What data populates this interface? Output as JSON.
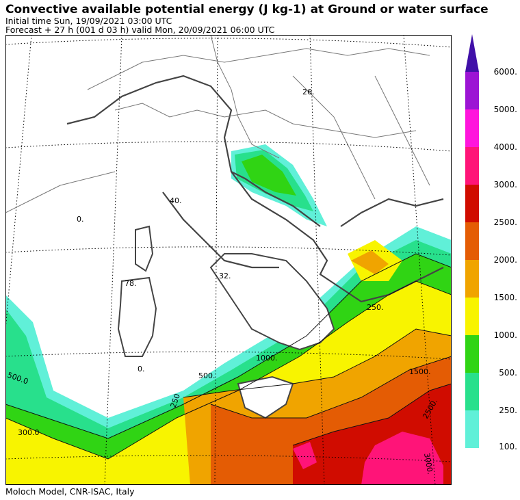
{
  "header": {
    "title": "Convective available potential energy (J kg-1) at Ground or water surface",
    "initial_time": "Initial time  Sun, 19/09/2021  03:00 UTC",
    "forecast": "Forecast  +  27 h  (001 d 03 h)  valid Mon, 20/09/2021 06:00 UTC"
  },
  "footer": {
    "credit": "Moloch Model, CNR-ISAC, Italy"
  },
  "legend": {
    "colors": [
      "#60f0d8",
      "#28e08c",
      "#30d414",
      "#f8f400",
      "#f0a400",
      "#e45c04",
      "#d00c00",
      "#ff1478",
      "#ff14dc",
      "#9c14d4",
      "#4010a8"
    ],
    "labels": [
      "100.",
      "250.",
      "500.",
      "1000.",
      "1500.",
      "2000.",
      "2500.",
      "3000.",
      "4000.",
      "5000.",
      "6000."
    ]
  },
  "map_labels": {
    "l26": "26.",
    "l40": "40.",
    "l0a": "0.",
    "l78": "78.",
    "l32": "32.",
    "l0b": "0.",
    "l1000": "1000.",
    "l500": "500.",
    "l1500": "1500.",
    "l2500": "2500.",
    "l3000": "3000.",
    "l250": "250.",
    "l500b": "500.0",
    "l300": "300.0",
    "l250b": "250"
  }
}
